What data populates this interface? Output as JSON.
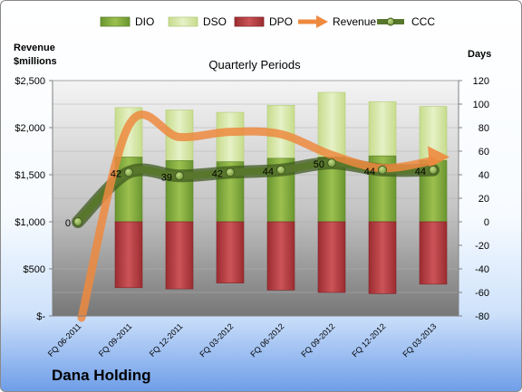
{
  "chart_data": {
    "type": "bar",
    "title": "Quarterly Periods",
    "company": "Dana Holding",
    "categories": [
      "FQ 06-2011",
      "FQ 09-2011",
      "FQ 12-2011",
      "FQ 03-2012",
      "FQ 06-2012",
      "FQ 09-2012",
      "FQ 12-2012",
      "FQ 03-2013"
    ],
    "y_left_label_lines": [
      "Revenue",
      "$millions"
    ],
    "y_left_ticks": [
      "$-",
      "$500",
      "$1,000",
      "$1,500",
      "$2,000",
      "$2,500"
    ],
    "y_left_lim": [
      0,
      2500
    ],
    "y_right_label": "Days",
    "y_right_ticks": [
      "-80",
      "-60",
      "-40",
      "-20",
      "0",
      "20",
      "40",
      "60",
      "80",
      "100",
      "120"
    ],
    "y_right_lim": [
      -80,
      120
    ],
    "series": [
      {
        "name": "DIO",
        "axis": "right",
        "kind": "stacked-bar",
        "color": "#7aa33a",
        "values": [
          null,
          55,
          52,
          51,
          54,
          55,
          56,
          52
        ]
      },
      {
        "name": "DSO",
        "axis": "right",
        "kind": "stacked-bar",
        "color": "#d6e8a8",
        "values": [
          null,
          42,
          43,
          42,
          45,
          55,
          46,
          46
        ]
      },
      {
        "name": "DPO",
        "axis": "right",
        "kind": "bar-negative",
        "color": "#b83a3e",
        "values": [
          null,
          -56,
          -57,
          -52,
          -58,
          -60,
          -61,
          -53
        ]
      },
      {
        "name": "Revenue",
        "axis": "left",
        "kind": "line",
        "color": "#ed8a3f",
        "values": [
          0,
          2020,
          1900,
          1955,
          1930,
          1710,
          1570,
          1650
        ]
      },
      {
        "name": "CCC",
        "axis": "right",
        "kind": "line-marker",
        "color": "#4e6a2a",
        "values": [
          0,
          42,
          39,
          42,
          44,
          50,
          44,
          44
        ]
      }
    ],
    "data_labels": [
      "0",
      "42",
      "39",
      "42",
      "44",
      "50",
      "44",
      "44"
    ],
    "grid": true,
    "legend_position": "top"
  }
}
